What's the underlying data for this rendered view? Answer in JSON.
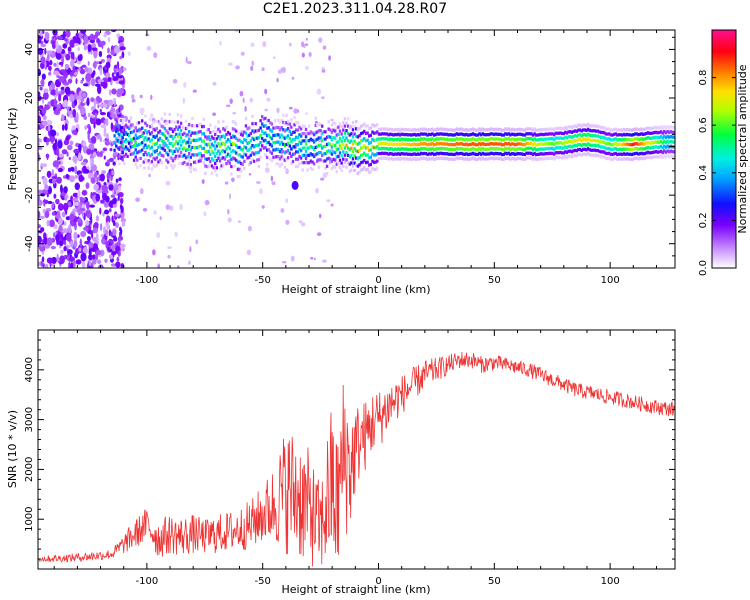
{
  "title": "C2E1.2023.311.04.28.R07",
  "chart_data": [
    {
      "type": "heatmap",
      "xlabel": "Height of straight line (km)",
      "ylabel": "Frequency (Hz)",
      "xlim": [
        -147,
        128
      ],
      "ylim": [
        -50,
        48
      ],
      "xticks": [
        -100,
        -50,
        0,
        50,
        100
      ],
      "yticks": [
        -40,
        -20,
        0,
        20,
        40
      ],
      "colorbar": {
        "label": "Normalized spectral amplitude",
        "range": [
          0,
          1
        ],
        "ticks": [
          "0.0",
          "0.2",
          "0.4",
          "0.6",
          "0.8"
        ],
        "tick_values": [
          0.0,
          0.2,
          0.4,
          0.6,
          0.8
        ]
      },
      "ridge": [
        {
          "x": -112,
          "y": 3,
          "amp": 0.45
        },
        {
          "x": -100,
          "y": 2,
          "amp": 0.55
        },
        {
          "x": -90,
          "y": 2,
          "amp": 0.55
        },
        {
          "x": -80,
          "y": 1,
          "amp": 0.55
        },
        {
          "x": -70,
          "y": -1,
          "amp": 0.55
        },
        {
          "x": -60,
          "y": -1,
          "amp": 0.55
        },
        {
          "x": -50,
          "y": 4,
          "amp": 0.5
        },
        {
          "x": -40,
          "y": 2,
          "amp": 0.5
        },
        {
          "x": -30,
          "y": 1,
          "amp": 0.5
        },
        {
          "x": -20,
          "y": 0,
          "amp": 0.55
        },
        {
          "x": -10,
          "y": 0,
          "amp": 0.8
        },
        {
          "x": 0,
          "y": 1,
          "amp": 0.7
        },
        {
          "x": 10,
          "y": 1,
          "amp": 0.75
        },
        {
          "x": 20,
          "y": 1,
          "amp": 0.8
        },
        {
          "x": 40,
          "y": 1,
          "amp": 0.85
        },
        {
          "x": 60,
          "y": 1,
          "amp": 0.85
        },
        {
          "x": 75,
          "y": 1,
          "amp": 0.6
        },
        {
          "x": 90,
          "y": 3,
          "amp": 0.75
        },
        {
          "x": 100,
          "y": 1,
          "amp": 0.6
        },
        {
          "x": 110,
          "y": 1,
          "amp": 0.9
        },
        {
          "x": 125,
          "y": 2,
          "amp": 0.5
        }
      ]
    },
    {
      "type": "line",
      "xlabel": "Height of straight line (km)",
      "ylabel": "SNR (10 * v/v)",
      "xlim": [
        -147,
        128
      ],
      "ylim": [
        0,
        4800
      ],
      "xticks": [
        -100,
        -50,
        0,
        50,
        100
      ],
      "yticks": [
        1000,
        2000,
        3000,
        4000
      ],
      "color": "#ee3333",
      "series": [
        {
          "x": [
            -147,
            -135,
            -125,
            -115,
            -110,
            -105,
            -100,
            -95,
            -90,
            -85,
            -80,
            -75,
            -70,
            -65,
            -60,
            -55,
            -50,
            -45,
            -40,
            -35,
            -30,
            -25,
            -22,
            -20,
            -18,
            -15,
            -12,
            -10,
            -8,
            -5,
            -2,
            0,
            5,
            10,
            15,
            20,
            25,
            30,
            35,
            40,
            45,
            50,
            55,
            60,
            65,
            70,
            75,
            80,
            85,
            90,
            95,
            100,
            105,
            110,
            115,
            120,
            128
          ],
          "y": [
            200,
            220,
            250,
            300,
            500,
            700,
            900,
            600,
            700,
            650,
            700,
            650,
            700,
            750,
            800,
            900,
            1100,
            1300,
            1600,
            1500,
            1200,
            800,
            1400,
            1700,
            1200,
            2300,
            2000,
            2400,
            2600,
            2700,
            3000,
            3000,
            3300,
            3500,
            3700,
            3900,
            4000,
            4100,
            4200,
            4200,
            4100,
            4150,
            4100,
            4050,
            4000,
            3900,
            3800,
            3700,
            3600,
            3550,
            3500,
            3450,
            3400,
            3350,
            3300,
            3250,
            3200
          ],
          "noise": [
            60,
            80,
            90,
            100,
            200,
            300,
            350,
            400,
            400,
            400,
            400,
            350,
            400,
            400,
            450,
            500,
            600,
            800,
            1300,
            1300,
            1200,
            900,
            1400,
            1700,
            1500,
            1700,
            1300,
            900,
            800,
            700,
            650,
            600,
            500,
            400,
            350,
            300,
            250,
            200,
            180,
            170,
            170,
            160,
            150,
            150,
            150,
            150,
            150,
            150,
            150,
            150,
            150,
            150,
            150,
            150,
            150,
            150,
            150
          ]
        }
      ]
    }
  ]
}
